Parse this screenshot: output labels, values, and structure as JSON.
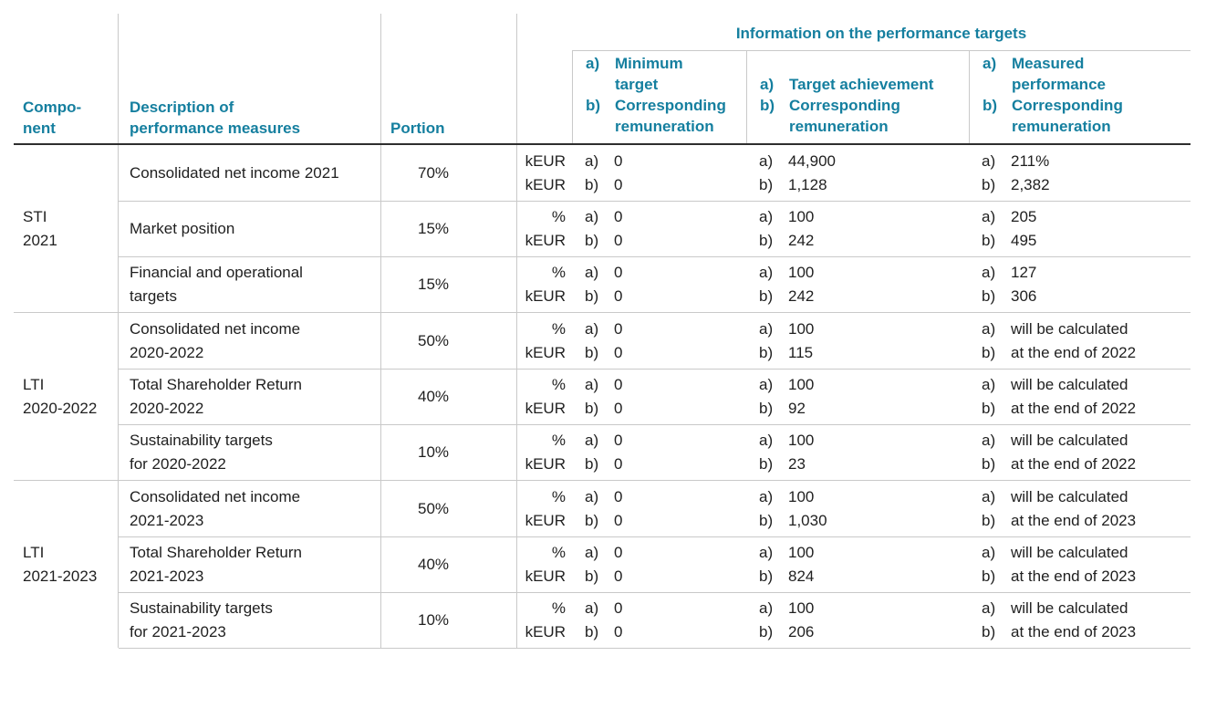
{
  "colors": {
    "accent_teal": "#157f9f",
    "body_text": "#1f1f1f",
    "grid_line": "#c9c9c9",
    "header_rule": "#2e2e2e"
  },
  "ab_labels": {
    "a": "a)",
    "b": "b)"
  },
  "header": {
    "component": "Compo-\nnent",
    "description": "Description of\nperformance measures",
    "portion": "Portion",
    "info_title": "Information on the performance targets",
    "subheaders": [
      {
        "a_text": "Minimum\ntarget",
        "b_text": "Corresponding\nremuneration"
      },
      {
        "a_text": "Target achievement",
        "b_text": "Corresponding\nremuneration"
      },
      {
        "a_text": "Measured\nperformance",
        "b_text": "Corresponding\nremuneration"
      }
    ]
  },
  "sections": [
    {
      "component": "STI\n2021",
      "rows": [
        {
          "description": "Consolidated net income 2021",
          "portion": "70%",
          "units": "kEUR\nkEUR",
          "cols": [
            {
              "a": "0",
              "b": "0"
            },
            {
              "a": "44,900",
              "b": "1,128"
            },
            {
              "a": "211%",
              "b": "2,382"
            }
          ]
        },
        {
          "description": "Market position",
          "portion": "15%",
          "units": "%\nkEUR",
          "cols": [
            {
              "a": "0",
              "b": "0"
            },
            {
              "a": "100",
              "b": "242"
            },
            {
              "a": "205",
              "b": "495"
            }
          ]
        },
        {
          "description": "Financial and operational\ntargets",
          "portion": "15%",
          "units": "%\nkEUR",
          "cols": [
            {
              "a": "0",
              "b": "0"
            },
            {
              "a": "100",
              "b": "242"
            },
            {
              "a": "127",
              "b": "306"
            }
          ]
        }
      ]
    },
    {
      "component": "LTI\n2020-2022",
      "rows": [
        {
          "description": "Consolidated net income\n2020-2022",
          "portion": "50%",
          "units": "%\nkEUR",
          "cols": [
            {
              "a": "0",
              "b": "0"
            },
            {
              "a": "100",
              "b": "115"
            },
            {
              "a": "will be calculated",
              "b": "at the end of 2022"
            }
          ]
        },
        {
          "description": "Total Shareholder Return\n2020-2022",
          "portion": "40%",
          "units": "%\nkEUR",
          "cols": [
            {
              "a": "0",
              "b": "0"
            },
            {
              "a": "100",
              "b": "92"
            },
            {
              "a": "will be calculated",
              "b": "at the end of 2022"
            }
          ]
        },
        {
          "description": "Sustainability targets\nfor 2020-2022",
          "portion": "10%",
          "units": "%\nkEUR",
          "cols": [
            {
              "a": "0",
              "b": "0"
            },
            {
              "a": "100",
              "b": "23"
            },
            {
              "a": "will be calculated",
              "b": "at the end of 2022"
            }
          ]
        }
      ]
    },
    {
      "component": "LTI\n2021-2023",
      "rows": [
        {
          "description": "Consolidated net income\n2021-2023",
          "portion": "50%",
          "units": "%\nkEUR",
          "cols": [
            {
              "a": "0",
              "b": "0"
            },
            {
              "a": "100",
              "b": "1,030"
            },
            {
              "a": "will be calculated",
              "b": "at the end of 2023"
            }
          ]
        },
        {
          "description": "Total Shareholder Return\n2021-2023",
          "portion": "40%",
          "units": "%\nkEUR",
          "cols": [
            {
              "a": "0",
              "b": "0"
            },
            {
              "a": "100",
              "b": "824"
            },
            {
              "a": "will be calculated",
              "b": "at the end of 2023"
            }
          ]
        },
        {
          "description": "Sustainability targets\nfor 2021-2023",
          "portion": "10%",
          "units": "%\nkEUR",
          "cols": [
            {
              "a": "0",
              "b": "0"
            },
            {
              "a": "100",
              "b": "206"
            },
            {
              "a": "will be calculated",
              "b": "at the end of 2023"
            }
          ]
        }
      ]
    }
  ]
}
